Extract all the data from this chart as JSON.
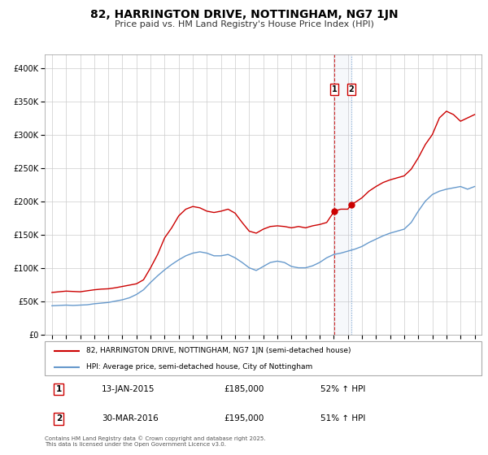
{
  "title": "82, HARRINGTON DRIVE, NOTTINGHAM, NG7 1JN",
  "subtitle": "Price paid vs. HM Land Registry's House Price Index (HPI)",
  "red_label": "82, HARRINGTON DRIVE, NOTTINGHAM, NG7 1JN (semi-detached house)",
  "blue_label": "HPI: Average price, semi-detached house, City of Nottingham",
  "footnote": "Contains HM Land Registry data © Crown copyright and database right 2025.\nThis data is licensed under the Open Government Licence v3.0.",
  "marker1_date": "13-JAN-2015",
  "marker1_price": 185000,
  "marker1_hpi": "52% ↑ HPI",
  "marker2_date": "30-MAR-2016",
  "marker2_price": 195000,
  "marker2_hpi": "51% ↑ HPI",
  "red_color": "#cc0000",
  "blue_color": "#6699cc",
  "marker1_x": 2015.04,
  "marker2_x": 2016.25,
  "ylim_max": 420000,
  "xlim_min": 1994.5,
  "xlim_max": 2025.5,
  "red_data": [
    [
      1995.0,
      63000
    ],
    [
      1995.5,
      64000
    ],
    [
      1996.0,
      65000
    ],
    [
      1996.5,
      64500
    ],
    [
      1997.0,
      64000
    ],
    [
      1997.5,
      65500
    ],
    [
      1998.0,
      67000
    ],
    [
      1998.5,
      68000
    ],
    [
      1999.0,
      68500
    ],
    [
      1999.5,
      70000
    ],
    [
      2000.0,
      72000
    ],
    [
      2000.5,
      74000
    ],
    [
      2001.0,
      76000
    ],
    [
      2001.5,
      82000
    ],
    [
      2002.0,
      100000
    ],
    [
      2002.5,
      120000
    ],
    [
      2003.0,
      145000
    ],
    [
      2003.5,
      160000
    ],
    [
      2004.0,
      178000
    ],
    [
      2004.5,
      188000
    ],
    [
      2005.0,
      192000
    ],
    [
      2005.5,
      190000
    ],
    [
      2006.0,
      185000
    ],
    [
      2006.5,
      183000
    ],
    [
      2007.0,
      185000
    ],
    [
      2007.5,
      188000
    ],
    [
      2008.0,
      182000
    ],
    [
      2008.5,
      168000
    ],
    [
      2009.0,
      155000
    ],
    [
      2009.5,
      152000
    ],
    [
      2010.0,
      158000
    ],
    [
      2010.5,
      162000
    ],
    [
      2011.0,
      163000
    ],
    [
      2011.5,
      162000
    ],
    [
      2012.0,
      160000
    ],
    [
      2012.5,
      162000
    ],
    [
      2013.0,
      160000
    ],
    [
      2013.5,
      163000
    ],
    [
      2014.0,
      165000
    ],
    [
      2014.5,
      168000
    ],
    [
      2015.04,
      185000
    ],
    [
      2015.5,
      188000
    ],
    [
      2016.0,
      188000
    ],
    [
      2016.25,
      195000
    ],
    [
      2016.5,
      198000
    ],
    [
      2017.0,
      205000
    ],
    [
      2017.5,
      215000
    ],
    [
      2018.0,
      222000
    ],
    [
      2018.5,
      228000
    ],
    [
      2019.0,
      232000
    ],
    [
      2019.5,
      235000
    ],
    [
      2020.0,
      238000
    ],
    [
      2020.5,
      248000
    ],
    [
      2021.0,
      265000
    ],
    [
      2021.5,
      285000
    ],
    [
      2022.0,
      300000
    ],
    [
      2022.5,
      325000
    ],
    [
      2023.0,
      335000
    ],
    [
      2023.5,
      330000
    ],
    [
      2024.0,
      320000
    ],
    [
      2024.5,
      325000
    ],
    [
      2025.0,
      330000
    ]
  ],
  "blue_data": [
    [
      1995.0,
      43000
    ],
    [
      1995.5,
      43500
    ],
    [
      1996.0,
      44000
    ],
    [
      1996.5,
      43500
    ],
    [
      1997.0,
      44000
    ],
    [
      1997.5,
      44500
    ],
    [
      1998.0,
      46000
    ],
    [
      1998.5,
      47000
    ],
    [
      1999.0,
      48000
    ],
    [
      1999.5,
      50000
    ],
    [
      2000.0,
      52000
    ],
    [
      2000.5,
      55000
    ],
    [
      2001.0,
      60000
    ],
    [
      2001.5,
      67000
    ],
    [
      2002.0,
      78000
    ],
    [
      2002.5,
      88000
    ],
    [
      2003.0,
      97000
    ],
    [
      2003.5,
      105000
    ],
    [
      2004.0,
      112000
    ],
    [
      2004.5,
      118000
    ],
    [
      2005.0,
      122000
    ],
    [
      2005.5,
      124000
    ],
    [
      2006.0,
      122000
    ],
    [
      2006.5,
      118000
    ],
    [
      2007.0,
      118000
    ],
    [
      2007.5,
      120000
    ],
    [
      2008.0,
      115000
    ],
    [
      2008.5,
      108000
    ],
    [
      2009.0,
      100000
    ],
    [
      2009.5,
      96000
    ],
    [
      2010.0,
      102000
    ],
    [
      2010.5,
      108000
    ],
    [
      2011.0,
      110000
    ],
    [
      2011.5,
      108000
    ],
    [
      2012.0,
      102000
    ],
    [
      2012.5,
      100000
    ],
    [
      2013.0,
      100000
    ],
    [
      2013.5,
      103000
    ],
    [
      2014.0,
      108000
    ],
    [
      2014.5,
      115000
    ],
    [
      2015.0,
      120000
    ],
    [
      2015.5,
      122000
    ],
    [
      2016.0,
      125000
    ],
    [
      2016.5,
      128000
    ],
    [
      2017.0,
      132000
    ],
    [
      2017.5,
      138000
    ],
    [
      2018.0,
      143000
    ],
    [
      2018.5,
      148000
    ],
    [
      2019.0,
      152000
    ],
    [
      2019.5,
      155000
    ],
    [
      2020.0,
      158000
    ],
    [
      2020.5,
      168000
    ],
    [
      2021.0,
      185000
    ],
    [
      2021.5,
      200000
    ],
    [
      2022.0,
      210000
    ],
    [
      2022.5,
      215000
    ],
    [
      2023.0,
      218000
    ],
    [
      2023.5,
      220000
    ],
    [
      2024.0,
      222000
    ],
    [
      2024.5,
      218000
    ],
    [
      2025.0,
      222000
    ]
  ]
}
